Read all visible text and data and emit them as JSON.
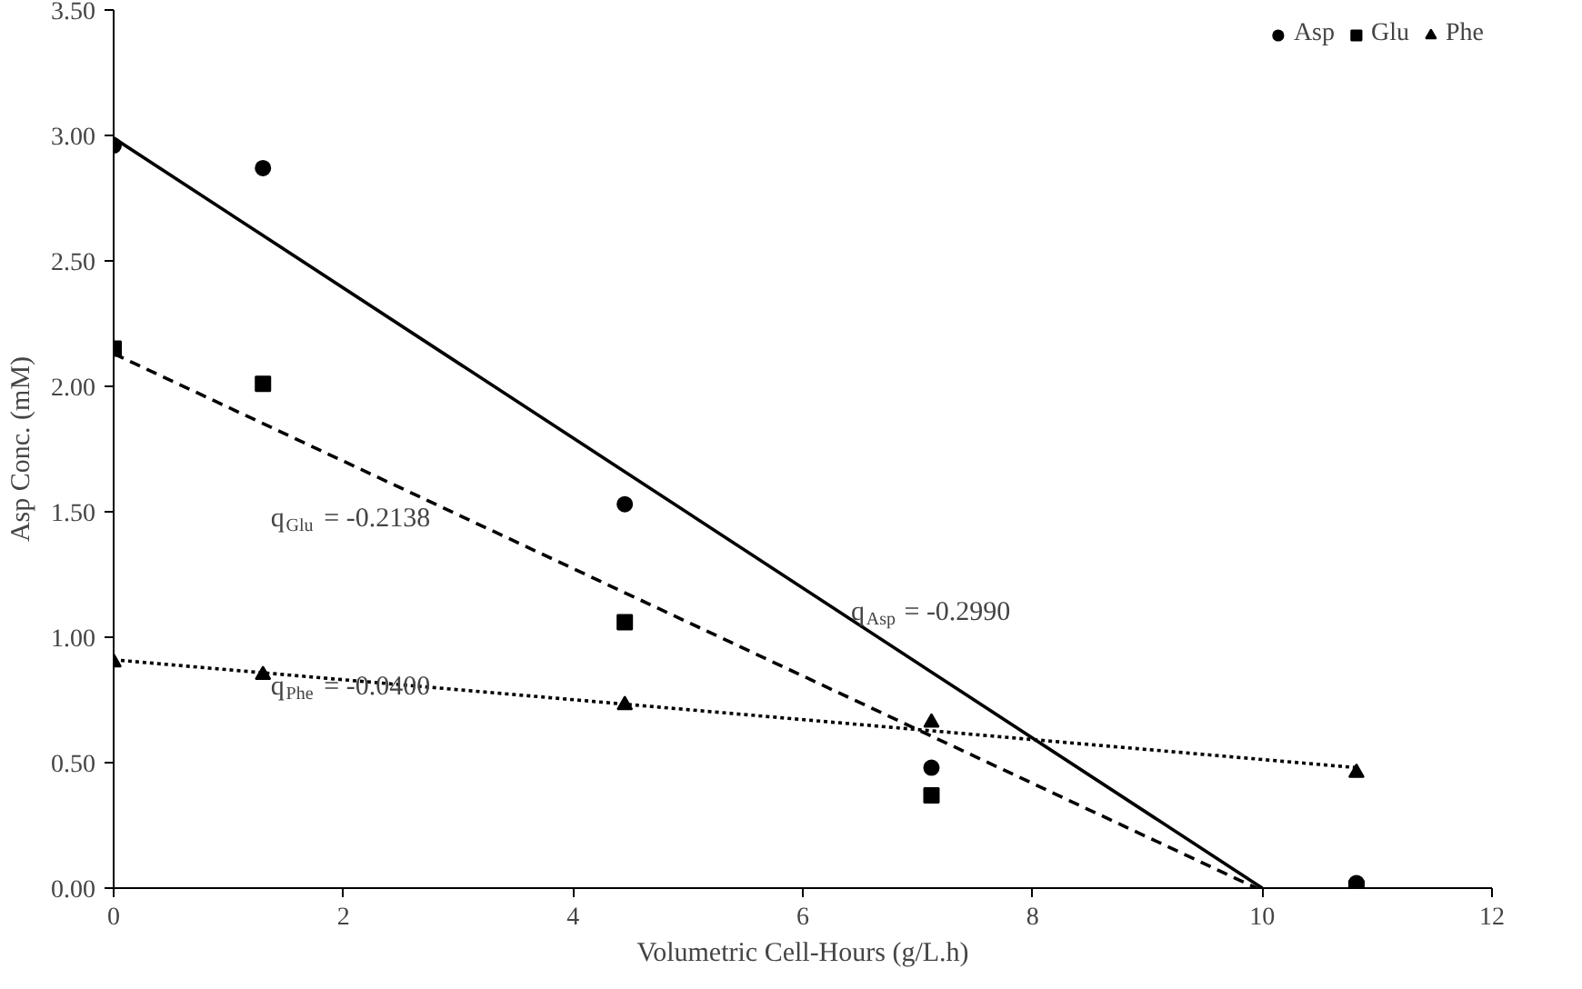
{
  "chart_data": {
    "type": "scatter",
    "xlabel": "Volumetric Cell-Hours (g/L.h)",
    "ylabel": "Asp Conc. (mM)",
    "xlim": [
      0,
      12
    ],
    "xticks": [
      0,
      2,
      4,
      6,
      8,
      10,
      12
    ],
    "ylim": [
      0,
      3.5
    ],
    "yticks": [
      {
        "value": 0,
        "label": "0.00"
      },
      {
        "value": 0.5,
        "label": "0.50"
      },
      {
        "value": 1,
        "label": "1.00"
      },
      {
        "value": 1.5,
        "label": "1.50"
      },
      {
        "value": 2,
        "label": "2.00"
      },
      {
        "value": 2.5,
        "label": "2.50"
      },
      {
        "value": 3,
        "label": "3.00"
      },
      {
        "value": 3.5,
        "label": "3.50"
      }
    ],
    "grid": false,
    "legend": "top right",
    "series": [
      {
        "name": "Asp",
        "marker": "circle",
        "color": "#000000",
        "x": [
          0,
          1.3,
          4.45,
          7.12,
          10.82
        ],
        "values": [
          2.96,
          2.87,
          1.53,
          0.48,
          0.02
        ]
      },
      {
        "name": "Glu",
        "marker": "square",
        "color": "#000000",
        "x": [
          0,
          1.3,
          4.45,
          7.12,
          10.82
        ],
        "values": [
          2.15,
          2.01,
          1.06,
          0.37,
          0.0
        ]
      },
      {
        "name": "Phe",
        "marker": "triangle",
        "color": "#000000",
        "x": [
          0,
          1.3,
          4.45,
          7.12,
          10.82
        ],
        "values": [
          0.9,
          0.85,
          0.73,
          0.66,
          0.46
        ]
      },
      {
        "type": "line",
        "line_style": "solid",
        "color": "#000000",
        "x": [
          0,
          10.0
        ],
        "values": [
          2.99,
          0.0
        ]
      },
      {
        "type": "line",
        "line_style": "dashed",
        "color": "#000000",
        "x": [
          0,
          9.95
        ],
        "values": [
          2.13,
          0.0
        ]
      },
      {
        "type": "line",
        "line_style": "dotted",
        "color": "#000000",
        "x": [
          0,
          10.82
        ],
        "values": [
          0.91,
          0.48
        ]
      }
    ],
    "annotations": [
      "q$_{Asp}$ = -0.2990",
      "q$_{Glu}$ = -0.2138",
      "q$_{Phe}$ = -0.0400"
    ]
  }
}
